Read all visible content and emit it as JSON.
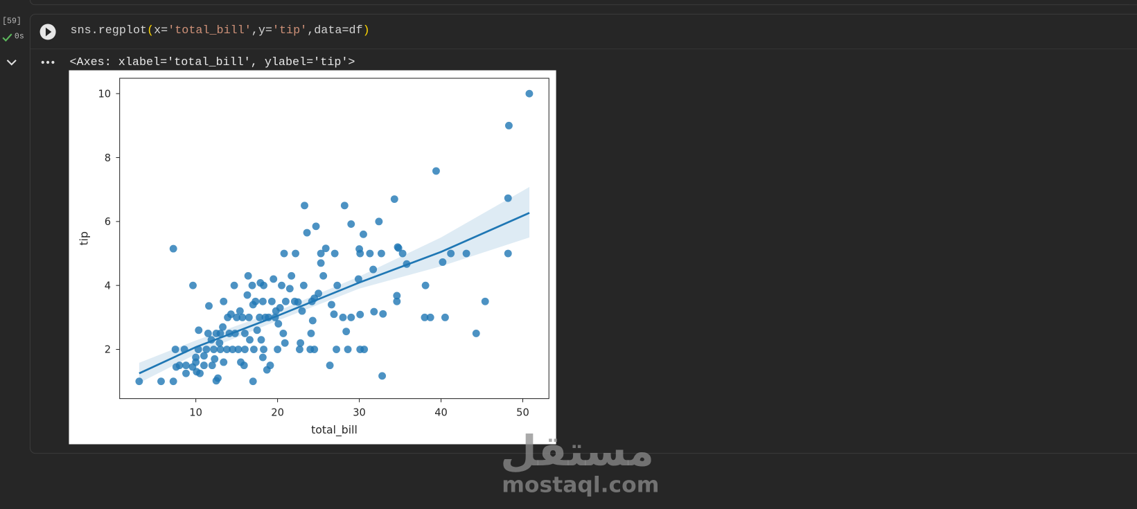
{
  "gutter": {
    "execution_count": "[59]",
    "duration": "0s"
  },
  "code": {
    "tokens": [
      "sns.regplot",
      "(",
      "x=",
      "'total_bill'",
      ",y=",
      "'tip'",
      ",data=df",
      ")"
    ]
  },
  "output": {
    "text": "<Axes: xlabel='total_bill', ylabel='tip'>"
  },
  "chart_data": {
    "type": "scatter",
    "xlabel": "total_bill",
    "ylabel": "tip",
    "color": "#1f77b4",
    "x": [
      3.07,
      5.75,
      7.25,
      7.25,
      7.5,
      7.6,
      8.0,
      8.6,
      8.8,
      8.8,
      9.6,
      9.65,
      10.0,
      10.0,
      10.3,
      10.35,
      10.1,
      10.5,
      11.0,
      11.0,
      11.3,
      11.5,
      11.6,
      11.9,
      12.0,
      12.2,
      12.5,
      12.3,
      12.7,
      12.5,
      12.9,
      13.0,
      13.0,
      13.3,
      13.4,
      13.4,
      13.8,
      13.9,
      14.1,
      14.3,
      14.5,
      14.7,
      14.8,
      15.0,
      15.2,
      15.4,
      15.5,
      15.7,
      15.9,
      16.0,
      16.0,
      16.3,
      16.4,
      16.5,
      16.6,
      16.9,
      17.0,
      17.0,
      17.1,
      17.3,
      17.5,
      17.8,
      17.9,
      18.0,
      18.2,
      18.3,
      18.2,
      18.5,
      18.3,
      18.7,
      18.9,
      19.1,
      19.3,
      19.5,
      19.7,
      19.8,
      20.0,
      20.1,
      20.3,
      20.5,
      20.7,
      20.8,
      20.9,
      21.0,
      21.5,
      21.7,
      22.1,
      22.2,
      22.5,
      22.7,
      22.8,
      23.0,
      23.2,
      23.3,
      23.6,
      24.0,
      24.1,
      24.2,
      24.3,
      24.5,
      24.5,
      24.7,
      25.0,
      25.3,
      25.3,
      25.6,
      25.9,
      26.4,
      26.6,
      26.9,
      27.0,
      27.2,
      27.3,
      28.0,
      28.2,
      28.4,
      28.6,
      29.0,
      29.0,
      29.9,
      30.0,
      30.1,
      30.1,
      30.1,
      30.6,
      30.5,
      31.3,
      31.7,
      31.8,
      32.4,
      32.7,
      32.9,
      32.8,
      34.3,
      34.6,
      34.6,
      34.7,
      34.8,
      35.3,
      35.8,
      38.0,
      38.1,
      38.7,
      39.4,
      40.2,
      40.5,
      41.2,
      43.1,
      44.3,
      45.4,
      48.2,
      48.3,
      48.2,
      50.8
    ],
    "values": [
      1,
      1,
      1,
      5.15,
      2,
      1.45,
      1.5,
      2,
      1.5,
      1.25,
      1.45,
      4,
      1.75,
      1.6,
      2,
      2.6,
      1.3,
      1.25,
      1.5,
      1.8,
      2,
      2.5,
      3.36,
      2.3,
      1.5,
      2,
      2.5,
      1.7,
      1.1,
      1.02,
      2.2,
      2.5,
      2,
      2.7,
      3.5,
      1.6,
      2,
      3,
      2.5,
      3.1,
      2,
      4,
      2.5,
      3,
      2,
      3.2,
      1.6,
      3,
      1.5,
      2,
      2.5,
      3.7,
      4.3,
      3,
      2.3,
      4,
      3.4,
      1,
      2,
      3.5,
      2.6,
      3,
      4.08,
      2.3,
      3.5,
      4,
      1.75,
      3,
      2,
      1.36,
      3,
      1.5,
      3.5,
      4.2,
      3,
      3.2,
      2,
      2.8,
      3.3,
      4,
      2.5,
      5,
      2.2,
      3.5,
      3.9,
      4.3,
      3.5,
      5,
      3.48,
      2,
      2.2,
      3.2,
      4,
      6.5,
      5.65,
      2,
      2.5,
      3.5,
      2.9,
      2,
      3.6,
      5.85,
      3.75,
      4.7,
      5,
      4.3,
      5.16,
      1.5,
      3.4,
      3.1,
      5,
      2,
      4,
      3,
      6.5,
      2.56,
      2,
      3,
      5.92,
      4.2,
      5.14,
      5,
      3.09,
      2,
      2,
      5.6,
      5,
      4.5,
      3.18,
      6,
      5,
      3.11,
      1.17,
      6.7,
      3.5,
      3.68,
      5.2,
      5.17,
      5,
      4.67,
      3,
      4,
      3,
      7.58,
      4.73,
      3,
      5,
      5,
      2.5,
      3.5,
      5,
      9,
      6.73,
      10
    ],
    "fit": {
      "x": [
        3.07,
        10,
        20,
        30,
        40,
        50.81
      ],
      "y": [
        1.25,
        2.07,
        3.05,
        4.09,
        5.05,
        6.27
      ],
      "lower": [
        0.95,
        1.85,
        2.9,
        3.9,
        4.6,
        5.5
      ],
      "upper": [
        1.58,
        2.28,
        3.2,
        4.28,
        5.5,
        7.08
      ]
    },
    "xlim": [
      0.68,
      53.2
    ],
    "xticks": [
      10,
      20,
      30,
      40,
      50
    ],
    "ylim": [
      0.46,
      10.48
    ],
    "yticks": [
      2,
      4,
      6,
      8,
      10
    ],
    "grid": false
  },
  "watermark": {
    "arabic": "مستقل",
    "latin": "mostaql.com"
  }
}
